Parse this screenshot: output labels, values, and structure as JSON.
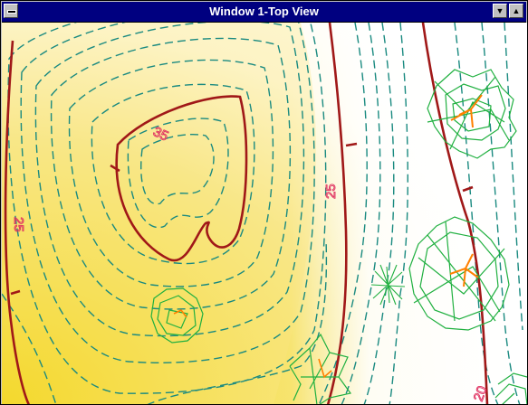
{
  "window": {
    "title": "Window 1-Top View",
    "buttons": {
      "system": "system-menu",
      "minimize": "▼",
      "maximize": "▲"
    }
  },
  "map": {
    "contour_labels": [
      {
        "id": "hill-top",
        "text": "35"
      },
      {
        "id": "left",
        "text": "25"
      },
      {
        "id": "middle",
        "text": "25"
      },
      {
        "id": "bottom-right",
        "text": "20"
      }
    ],
    "colors": {
      "major_contour": "#a01818",
      "minor_contour": "#1a8a80",
      "tree": "#20b040",
      "branch": "#ff8000",
      "label": "#e03060",
      "ground_high": "#f0d000",
      "ground_low": "#ffffff"
    }
  }
}
